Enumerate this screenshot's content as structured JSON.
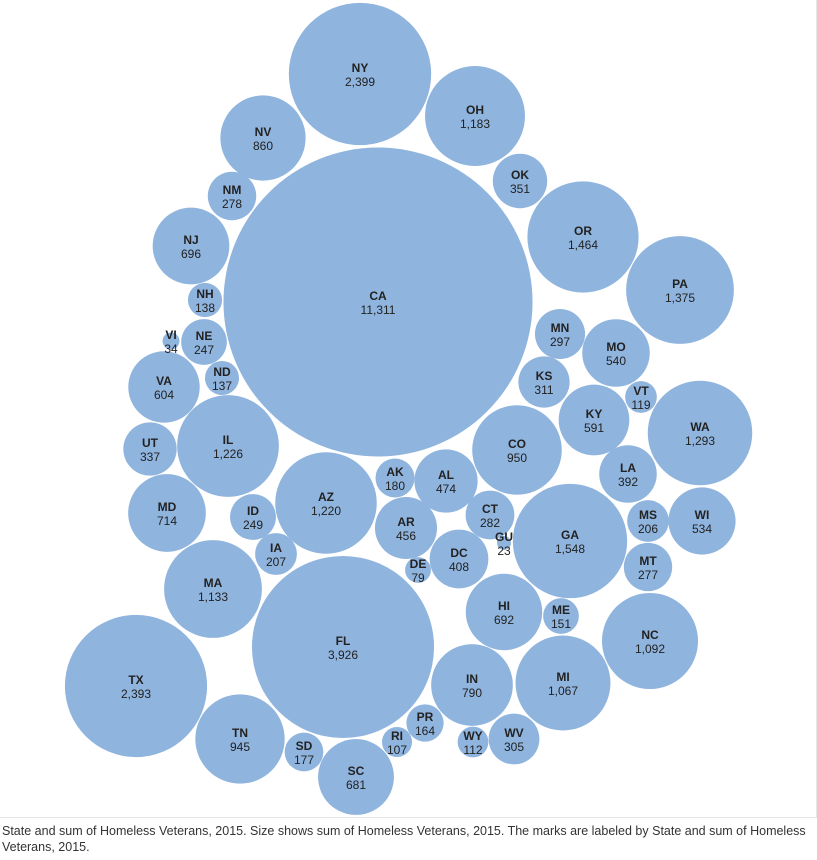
{
  "caption": "State and sum of Homeless Veterans, 2015.  Size shows sum of Homeless Veterans, 2015.  The marks are labeled by State and sum of Homeless Veterans, 2015.",
  "colors": {
    "bubble": "#8fb4de",
    "label": "#222222"
  },
  "chart_data": {
    "type": "packed-bubble",
    "size_measure": "sum of Homeless Veterans, 2015",
    "points": [
      {
        "state": "CA",
        "value": 11311,
        "label": "11,311"
      },
      {
        "state": "FL",
        "value": 3926,
        "label": "3,926"
      },
      {
        "state": "NY",
        "value": 2399,
        "label": "2,399"
      },
      {
        "state": "TX",
        "value": 2393,
        "label": "2,393"
      },
      {
        "state": "GA",
        "value": 1548,
        "label": "1,548"
      },
      {
        "state": "OR",
        "value": 1464,
        "label": "1,464"
      },
      {
        "state": "PA",
        "value": 1375,
        "label": "1,375"
      },
      {
        "state": "WA",
        "value": 1293,
        "label": "1,293"
      },
      {
        "state": "IL",
        "value": 1226,
        "label": "1,226"
      },
      {
        "state": "AZ",
        "value": 1220,
        "label": "1,220"
      },
      {
        "state": "OH",
        "value": 1183,
        "label": "1,183"
      },
      {
        "state": "MA",
        "value": 1133,
        "label": "1,133"
      },
      {
        "state": "NC",
        "value": 1092,
        "label": "1,092"
      },
      {
        "state": "MI",
        "value": 1067,
        "label": "1,067"
      },
      {
        "state": "CO",
        "value": 950,
        "label": "950"
      },
      {
        "state": "TN",
        "value": 945,
        "label": "945"
      },
      {
        "state": "NV",
        "value": 860,
        "label": "860"
      },
      {
        "state": "IN",
        "value": 790,
        "label": "790"
      },
      {
        "state": "MD",
        "value": 714,
        "label": "714"
      },
      {
        "state": "NJ",
        "value": 696,
        "label": "696"
      },
      {
        "state": "HI",
        "value": 692,
        "label": "692"
      },
      {
        "state": "SC",
        "value": 681,
        "label": "681"
      },
      {
        "state": "VA",
        "value": 604,
        "label": "604"
      },
      {
        "state": "KY",
        "value": 591,
        "label": "591"
      },
      {
        "state": "MO",
        "value": 540,
        "label": "540"
      },
      {
        "state": "WI",
        "value": 534,
        "label": "534"
      },
      {
        "state": "AL",
        "value": 474,
        "label": "474"
      },
      {
        "state": "AR",
        "value": 456,
        "label": "456"
      },
      {
        "state": "DC",
        "value": 408,
        "label": "408"
      },
      {
        "state": "LA",
        "value": 392,
        "label": "392"
      },
      {
        "state": "OK",
        "value": 351,
        "label": "351"
      },
      {
        "state": "UT",
        "value": 337,
        "label": "337"
      },
      {
        "state": "KS",
        "value": 311,
        "label": "311"
      },
      {
        "state": "WV",
        "value": 305,
        "label": "305"
      },
      {
        "state": "MN",
        "value": 297,
        "label": "297"
      },
      {
        "state": "CT",
        "value": 282,
        "label": "282"
      },
      {
        "state": "NM",
        "value": 278,
        "label": "278"
      },
      {
        "state": "MT",
        "value": 277,
        "label": "277"
      },
      {
        "state": "ID",
        "value": 249,
        "label": "249"
      },
      {
        "state": "NE",
        "value": 247,
        "label": "247"
      },
      {
        "state": "IA",
        "value": 207,
        "label": "207"
      },
      {
        "state": "MS",
        "value": 206,
        "label": "206"
      },
      {
        "state": "AK",
        "value": 180,
        "label": "180"
      },
      {
        "state": "SD",
        "value": 177,
        "label": "177"
      },
      {
        "state": "PR",
        "value": 164,
        "label": "164"
      },
      {
        "state": "ME",
        "value": 151,
        "label": "151"
      },
      {
        "state": "NH",
        "value": 138,
        "label": "138"
      },
      {
        "state": "ND",
        "value": 137,
        "label": "137"
      },
      {
        "state": "VT",
        "value": 119,
        "label": "119"
      },
      {
        "state": "WY",
        "value": 112,
        "label": "112"
      },
      {
        "state": "RI",
        "value": 107,
        "label": "107"
      },
      {
        "state": "DE",
        "value": 79,
        "label": "79"
      },
      {
        "state": "VI",
        "value": 34,
        "label": "34"
      },
      {
        "state": "GU",
        "value": 23,
        "label": "23"
      }
    ]
  }
}
